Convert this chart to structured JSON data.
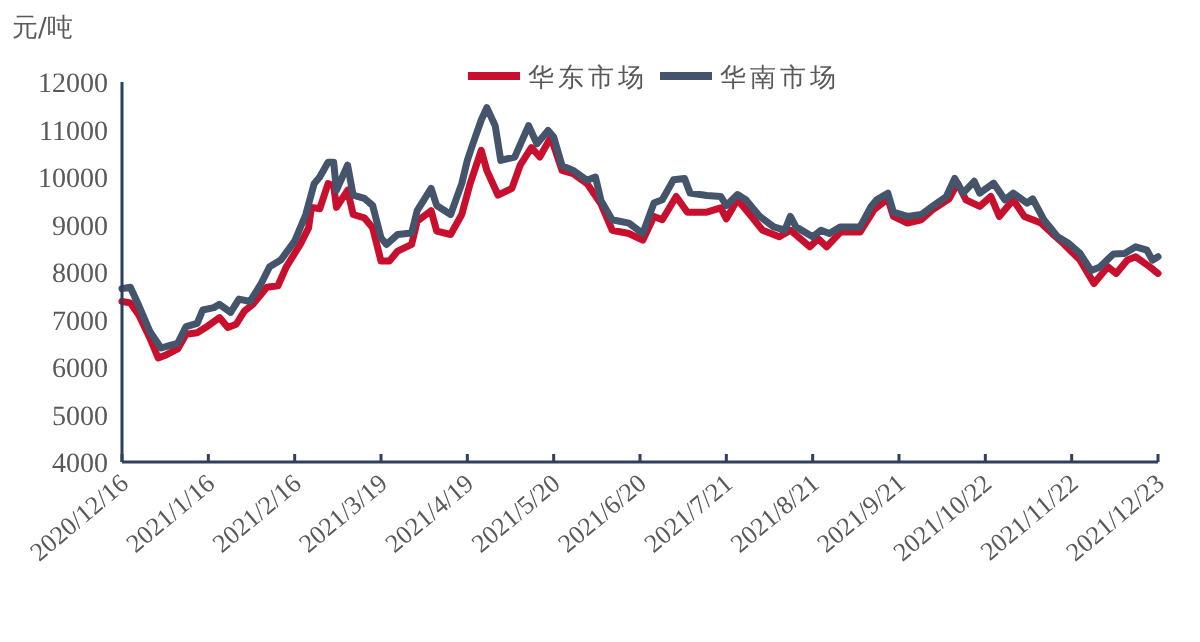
{
  "chart_data": {
    "type": "line",
    "ylabel": "元/吨",
    "legend": "top",
    "ylim": [
      4000,
      12000
    ],
    "yticks": [
      4000,
      5000,
      6000,
      7000,
      8000,
      9000,
      10000,
      11000,
      12000
    ],
    "xlim": [
      "2020-12-16",
      "2021-12-23"
    ],
    "xticks": [
      {
        "value": "2020-12-16",
        "label": "2020/12/16"
      },
      {
        "value": "2021-01-16",
        "label": "2021/1/16"
      },
      {
        "value": "2021-02-16",
        "label": "2021/2/16"
      },
      {
        "value": "2021-03-19",
        "label": "2021/3/19"
      },
      {
        "value": "2021-04-19",
        "label": "2021/4/19"
      },
      {
        "value": "2021-05-20",
        "label": "2021/5/20"
      },
      {
        "value": "2021-06-20",
        "label": "2021/6/20"
      },
      {
        "value": "2021-07-21",
        "label": "2021/7/21"
      },
      {
        "value": "2021-08-21",
        "label": "2021/8/21"
      },
      {
        "value": "2021-09-21",
        "label": "2021/9/21"
      },
      {
        "value": "2021-10-22",
        "label": "2021/10/22"
      },
      {
        "value": "2021-11-22",
        "label": "2021/11/22"
      },
      {
        "value": "2021-12-23",
        "label": "2021/12/23"
      }
    ],
    "series": [
      {
        "name": "华东市场",
        "color": "#c8102e",
        "x": [
          "2020-12-16",
          "2020-12-19",
          "2020-12-22",
          "2020-12-26",
          "2020-12-29",
          "2021-01-01",
          "2021-01-05",
          "2021-01-08",
          "2021-01-12",
          "2021-01-15",
          "2021-01-20",
          "2021-01-23",
          "2021-01-26",
          "2021-01-29",
          "2021-02-01",
          "2021-02-06",
          "2021-02-10",
          "2021-02-13",
          "2021-02-18",
          "2021-02-21",
          "2021-02-22",
          "2021-02-25",
          "2021-02-28",
          "2021-03-02",
          "2021-03-03",
          "2021-03-07",
          "2021-03-09",
          "2021-03-13",
          "2021-03-16",
          "2021-03-19",
          "2021-03-22",
          "2021-03-25",
          "2021-03-30",
          "2021-04-01",
          "2021-04-06",
          "2021-04-08",
          "2021-04-13",
          "2021-04-17",
          "2021-04-20",
          "2021-04-24",
          "2021-04-26",
          "2021-04-30",
          "2021-05-05",
          "2021-05-08",
          "2021-05-12",
          "2021-05-15",
          "2021-05-19",
          "2021-05-23",
          "2021-05-27",
          "2021-06-01",
          "2021-06-06",
          "2021-06-10",
          "2021-06-16",
          "2021-06-21",
          "2021-06-25",
          "2021-06-28",
          "2021-07-03",
          "2021-07-07",
          "2021-07-14",
          "2021-07-19",
          "2021-07-21",
          "2021-07-25",
          "2021-07-29",
          "2021-08-03",
          "2021-08-09",
          "2021-08-13",
          "2021-08-20",
          "2021-08-23",
          "2021-08-26",
          "2021-08-31",
          "2021-09-07",
          "2021-09-12",
          "2021-09-17",
          "2021-09-19",
          "2021-09-24",
          "2021-09-29",
          "2021-10-03",
          "2021-10-09",
          "2021-10-12",
          "2021-10-15",
          "2021-10-20",
          "2021-10-24",
          "2021-10-27",
          "2021-11-01",
          "2021-11-05",
          "2021-11-11",
          "2021-11-15",
          "2021-11-19",
          "2021-11-25",
          "2021-11-30",
          "2021-12-05",
          "2021-12-08",
          "2021-12-12",
          "2021-12-15",
          "2021-12-20",
          "2021-12-23"
        ],
        "values": [
          7380,
          7350,
          7100,
          6610,
          6190,
          6260,
          6380,
          6690,
          6720,
          6830,
          7040,
          6830,
          6900,
          7180,
          7320,
          7680,
          7710,
          8110,
          8580,
          8930,
          9360,
          9330,
          9860,
          9820,
          9360,
          9720,
          9210,
          9140,
          8930,
          8230,
          8230,
          8440,
          8580,
          9070,
          9290,
          8860,
          8790,
          9210,
          9860,
          10560,
          10140,
          9620,
          9760,
          10250,
          10620,
          10420,
          10840,
          10140,
          10070,
          9860,
          9430,
          8880,
          8810,
          8670,
          9170,
          9100,
          9590,
          9260,
          9260,
          9350,
          9120,
          9520,
          9240,
          8880,
          8740,
          8880,
          8530,
          8700,
          8530,
          8840,
          8840,
          9310,
          9540,
          9170,
          9030,
          9100,
          9310,
          9540,
          9870,
          9520,
          9380,
          9590,
          9170,
          9520,
          9170,
          9030,
          8810,
          8600,
          8250,
          7760,
          8110,
          7970,
          8250,
          8320,
          8110,
          7970
        ]
      },
      {
        "name": "华南市场",
        "color": "#44546a",
        "x": [
          "2020-12-16",
          "2020-12-19",
          "2020-12-22",
          "2020-12-26",
          "2020-12-30",
          "2021-01-02",
          "2021-01-05",
          "2021-01-08",
          "2021-01-12",
          "2021-01-14",
          "2021-01-18",
          "2021-01-20",
          "2021-01-24",
          "2021-01-27",
          "2021-01-31",
          "2021-02-04",
          "2021-02-07",
          "2021-02-11",
          "2021-02-16",
          "2021-02-20",
          "2021-02-23",
          "2021-02-25",
          "2021-02-28",
          "2021-03-02",
          "2021-03-03",
          "2021-03-07",
          "2021-03-09",
          "2021-03-13",
          "2021-03-16",
          "2021-03-19",
          "2021-03-21",
          "2021-03-25",
          "2021-03-30",
          "2021-04-01",
          "2021-04-06",
          "2021-04-08",
          "2021-04-13",
          "2021-04-17",
          "2021-04-19",
          "2021-04-21",
          "2021-04-24",
          "2021-04-26",
          "2021-04-29",
          "2021-05-01",
          "2021-05-06",
          "2021-05-11",
          "2021-05-14",
          "2021-05-18",
          "2021-05-20",
          "2021-05-23",
          "2021-05-27",
          "2021-06-01",
          "2021-06-04",
          "2021-06-06",
          "2021-06-10",
          "2021-06-16",
          "2021-06-21",
          "2021-06-25",
          "2021-06-28",
          "2021-07-02",
          "2021-07-06",
          "2021-07-08",
          "2021-07-14",
          "2021-07-19",
          "2021-07-21",
          "2021-07-25",
          "2021-07-28",
          "2021-08-02",
          "2021-08-07",
          "2021-08-11",
          "2021-08-13",
          "2021-08-15",
          "2021-08-21",
          "2021-08-24",
          "2021-08-27",
          "2021-08-31",
          "2021-09-07",
          "2021-09-11",
          "2021-09-13",
          "2021-09-17",
          "2021-09-19",
          "2021-09-24",
          "2021-09-29",
          "2021-10-03",
          "2021-10-08",
          "2021-10-11",
          "2021-10-14",
          "2021-10-18",
          "2021-10-20",
          "2021-10-25",
          "2021-10-29",
          "2021-11-01",
          "2021-11-06",
          "2021-11-08",
          "2021-11-12",
          "2021-11-17",
          "2021-11-21",
          "2021-11-25",
          "2021-11-29",
          "2021-12-02",
          "2021-12-07",
          "2021-12-11",
          "2021-12-15",
          "2021-12-19",
          "2021-12-21",
          "2021-12-23"
        ],
        "values": [
          7650,
          7680,
          7300,
          6750,
          6400,
          6450,
          6500,
          6850,
          6920,
          7200,
          7250,
          7320,
          7150,
          7430,
          7380,
          7760,
          8110,
          8250,
          8650,
          9210,
          9860,
          10000,
          10310,
          10310,
          9720,
          10250,
          9620,
          9550,
          9400,
          8720,
          8580,
          8790,
          8820,
          9290,
          9760,
          9400,
          9210,
          9860,
          10350,
          10700,
          11200,
          11460,
          11080,
          10350,
          10420,
          11080,
          10700,
          10980,
          10840,
          10240,
          10140,
          9930,
          10000,
          9500,
          9100,
          9030,
          8810,
          9450,
          9520,
          9940,
          9970,
          9660,
          9610,
          9590,
          9400,
          9630,
          9520,
          9170,
          8950,
          8880,
          9170,
          8950,
          8740,
          8880,
          8810,
          8950,
          8950,
          9380,
          9520,
          9660,
          9260,
          9170,
          9210,
          9380,
          9590,
          9970,
          9660,
          9910,
          9660,
          9870,
          9520,
          9660,
          9450,
          9540,
          9100,
          8740,
          8600,
          8390,
          8030,
          8100,
          8380,
          8390,
          8530,
          8460,
          8250,
          8320
        ]
      }
    ]
  }
}
